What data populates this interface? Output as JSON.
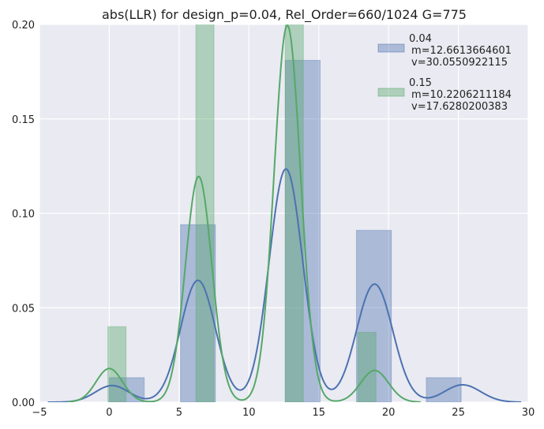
{
  "chart_data": {
    "type": "bar",
    "title": "abs(LLR) for design_p=0.04, Rel_Order=660/1024 G=775",
    "xlabel": "",
    "ylabel": "",
    "xlim": [
      -5,
      30
    ],
    "ylim": [
      0,
      0.2
    ],
    "xticks": [
      -5,
      0,
      5,
      10,
      15,
      20,
      25,
      30
    ],
    "xtick_labels": [
      "−5",
      "0",
      "5",
      "10",
      "15",
      "20",
      "25",
      "30"
    ],
    "yticks": [
      0,
      0.05,
      0.1,
      0.15,
      0.2
    ],
    "ytick_labels": [
      "0.00",
      "0.05",
      "0.10",
      "0.15",
      "0.20"
    ],
    "grid": true,
    "legend_position": "top-right",
    "colors": {
      "background": "#EAEAF2",
      "grid": "#FFFFFF",
      "series_0": "#4C72B0",
      "series_1": "#55A868"
    },
    "series": [
      {
        "name": "0.04",
        "legend_lines": [
          "0.04",
          "m=12.6613664601",
          "v=30.0550922115"
        ],
        "color": "#4C72B0",
        "histogram": [
          {
            "x0": 0,
            "x1": 2.5,
            "value": 0.013
          },
          {
            "x0": 5.1,
            "x1": 7.6,
            "value": 0.094
          },
          {
            "x0": 12.6,
            "x1": 15.1,
            "value": 0.181
          },
          {
            "x0": 17.7,
            "x1": 20.2,
            "value": 0.091
          },
          {
            "x0": 22.7,
            "x1": 25.2,
            "value": 0.013
          }
        ],
        "density_peaks": [
          {
            "mu": 0.2,
            "sigma": 1.2,
            "height": 0.0088
          },
          {
            "mu": 6.35,
            "sigma": 1.25,
            "height": 0.0645
          },
          {
            "mu": 12.65,
            "sigma": 1.2,
            "height": 0.1235
          },
          {
            "mu": 19.0,
            "sigma": 1.3,
            "height": 0.0625
          },
          {
            "mu": 25.3,
            "sigma": 1.3,
            "height": 0.0092
          }
        ]
      },
      {
        "name": "0.15",
        "legend_lines": [
          "0.15",
          "m=10.2206211184",
          "v=17.6280200383"
        ],
        "color": "#55A868",
        "histogram": [
          {
            "x0": -0.1,
            "x1": 1.2,
            "value": 0.04
          },
          {
            "x0": 6.2,
            "x1": 7.5,
            "value": 0.204
          },
          {
            "x0": 12.6,
            "x1": 13.9,
            "value": 0.246
          },
          {
            "x0": 17.8,
            "x1": 19.1,
            "value": 0.037
          }
        ],
        "density_peaks": [
          {
            "mu": 0.0,
            "sigma": 0.95,
            "height": 0.0178
          },
          {
            "mu": 6.4,
            "sigma": 0.95,
            "height": 0.1195
          },
          {
            "mu": 12.75,
            "sigma": 0.95,
            "height": 0.1995
          },
          {
            "mu": 19.0,
            "sigma": 1.0,
            "height": 0.0168
          }
        ],
        "density_range": [
          -3.0,
          22.3
        ]
      }
    ],
    "density_range_series_0": [
      -4.4,
      29.5
    ]
  }
}
